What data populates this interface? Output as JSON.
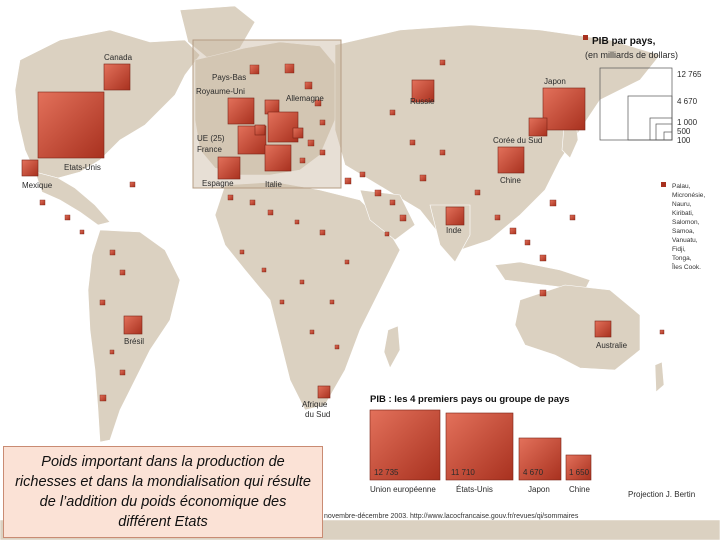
{
  "map": {
    "legend_title_1": "PIB par pays,",
    "legend_title_2": "(en milliards de dollars)",
    "legend_values": [
      "12 765",
      "4 670",
      "1 000",
      "500",
      "100"
    ],
    "pacific_note": [
      "Palau,",
      "Micronésie,",
      "Nauru,",
      "Kiribati,",
      "Salomon,",
      "Samoa,",
      "Vanuatu,",
      "Fidji,",
      "Tonga,",
      "Îles Cook."
    ],
    "countries": {
      "canada": "Canada",
      "etats_unis": "Etats-Unis",
      "mexique": "Mexique",
      "bresil": "Brésil",
      "pays_bas": "Pays-Bas",
      "royaume_uni": "Royaume-Uni",
      "allemagne": "Allemagne",
      "ue": "UE (25)",
      "france": "France",
      "espagne": "Espagne",
      "italie": "Italie",
      "russie": "Russie",
      "japon": "Japon",
      "coree_du_sud": "Corée du Sud",
      "chine": "Chine",
      "inde": "Inde",
      "australie": "Australie",
      "afrique_du_sud_1": "Afrique",
      "afrique_du_sud_2": "du Sud"
    },
    "top4": {
      "title": "PIB : les 4 premiers pays ou groupe de pays",
      "items": [
        {
          "name": "Union européenne",
          "value": "12 735"
        },
        {
          "name": "États-Unis",
          "value": "11 710"
        },
        {
          "name": "Japon",
          "value": "4 670"
        },
        {
          "name": "Chine",
          "value": "1 650"
        }
      ]
    },
    "projection": "Projection J. Bertin",
    "source": "novembre-décembre 2003. http://www.lacocfrancaise.gouv.fr/revues/qi/sommaires"
  },
  "caption": "Poids important dans la production de richesses et dans la mondialisation qui résulte de l’addition du poids économique des différent Etats"
}
